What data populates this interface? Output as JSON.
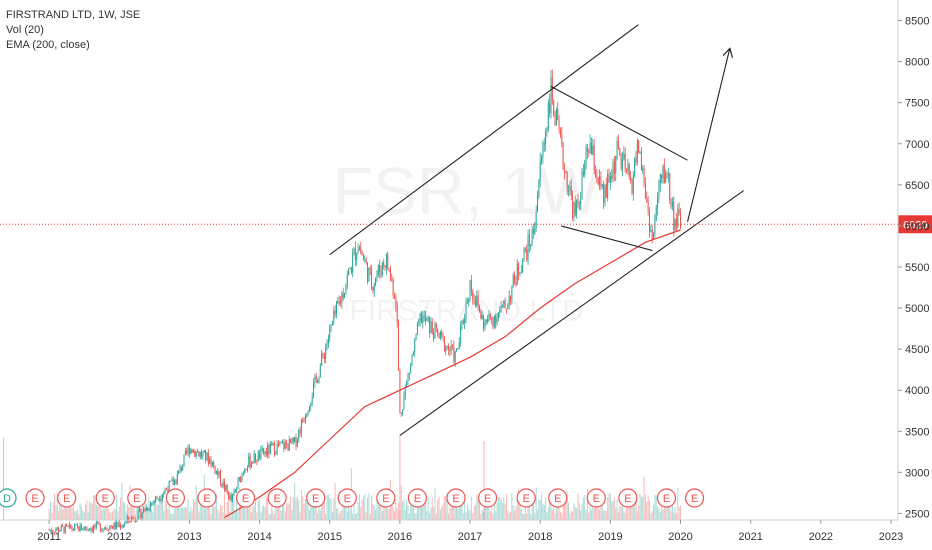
{
  "legend": {
    "symbol_line": "FIRSTRAND LTD, 1W, JSE",
    "volume_line": "Vol (20)",
    "ema_line": "EMA (200, close)"
  },
  "watermark": {
    "ticker": "FSR, 1W",
    "company": "FIRSTRAND LTD"
  },
  "colors": {
    "up": "#26a69a",
    "down": "#ef5350",
    "ema": "#e53935",
    "price_line": "#e53935",
    "trendline": "#222222",
    "axis_text": "#333333",
    "badge_fill": "#ffffff",
    "badge_stroke": "#ef5350"
  },
  "earnings_badge_label": "E",
  "dividend_badge_label": "D",
  "chart_data": {
    "type": "candlestick",
    "title": "FIRSTRAND LTD, 1W, JSE",
    "x_axis": {
      "ticks": [
        "2011",
        "2012",
        "2013",
        "2014",
        "2015",
        "2016",
        "2017",
        "2018",
        "2019",
        "2020",
        "2021",
        "2022",
        "2023"
      ],
      "range": [
        2010.3,
        2023.1
      ]
    },
    "y_axis": {
      "position": "right",
      "ticks": [
        2500,
        3000,
        3500,
        4000,
        4500,
        5000,
        5500,
        6000,
        6500,
        7000,
        7500,
        8000,
        8500
      ],
      "range": [
        2420,
        8750
      ]
    },
    "last_price": 6020,
    "price_path": [
      [
        2011.0,
        2300
      ],
      [
        2012.0,
        2350
      ],
      [
        2012.3,
        2500
      ],
      [
        2012.8,
        2900
      ],
      [
        2013.0,
        3300
      ],
      [
        2013.3,
        3150
      ],
      [
        2013.6,
        2650
      ],
      [
        2013.8,
        3100
      ],
      [
        2014.2,
        3300
      ],
      [
        2014.5,
        3350
      ],
      [
        2014.8,
        4100
      ],
      [
        2015.0,
        4700
      ],
      [
        2015.3,
        5500
      ],
      [
        2015.4,
        5800
      ],
      [
        2015.6,
        5300
      ],
      [
        2015.8,
        5600
      ],
      [
        2015.95,
        5100
      ],
      [
        2016.0,
        3700
      ],
      [
        2016.3,
        4900
      ],
      [
        2016.6,
        4600
      ],
      [
        2016.8,
        4400
      ],
      [
        2017.0,
        5300
      ],
      [
        2017.2,
        4800
      ],
      [
        2017.5,
        5000
      ],
      [
        2017.7,
        5500
      ],
      [
        2017.9,
        5900
      ],
      [
        2018.0,
        6700
      ],
      [
        2018.15,
        7650
      ],
      [
        2018.3,
        6900
      ],
      [
        2018.5,
        6100
      ],
      [
        2018.7,
        7000
      ],
      [
        2018.9,
        6300
      ],
      [
        2019.1,
        6900
      ],
      [
        2019.3,
        6500
      ],
      [
        2019.4,
        7000
      ],
      [
        2019.6,
        5800
      ],
      [
        2019.7,
        6500
      ],
      [
        2019.8,
        6700
      ],
      [
        2019.9,
        6100
      ],
      [
        2020.0,
        6020
      ]
    ],
    "ema_200": [
      [
        2013.5,
        2450
      ],
      [
        2014.0,
        2700
      ],
      [
        2014.5,
        3000
      ],
      [
        2015.0,
        3400
      ],
      [
        2015.5,
        3800
      ],
      [
        2016.0,
        4000
      ],
      [
        2016.5,
        4200
      ],
      [
        2017.0,
        4400
      ],
      [
        2017.5,
        4650
      ],
      [
        2018.0,
        5000
      ],
      [
        2018.5,
        5300
      ],
      [
        2019.0,
        5550
      ],
      [
        2019.5,
        5800
      ],
      [
        2020.0,
        5950
      ]
    ],
    "volume": {
      "indicator": "Vol (20)",
      "notable_spikes": [
        [
          2010.35,
          3420
        ],
        [
          2016.0,
          3450
        ],
        [
          2017.2,
          3380
        ]
      ]
    },
    "drawings": [
      {
        "type": "trendline",
        "from": [
          2015.0,
          5650
        ],
        "to": [
          2019.4,
          8450
        ]
      },
      {
        "type": "trendline",
        "from": [
          2016.0,
          3450
        ],
        "to": [
          2020.9,
          6430
        ]
      },
      {
        "type": "trendline",
        "from": [
          2018.15,
          7700
        ],
        "to": [
          2020.1,
          6800
        ]
      },
      {
        "type": "trendline",
        "from": [
          2018.3,
          6000
        ],
        "to": [
          2019.6,
          5700
        ]
      },
      {
        "type": "arrow",
        "from": [
          2020.1,
          6050
        ],
        "to": [
          2020.7,
          8150
        ]
      }
    ],
    "events": {
      "dividends": [
        2010.4
      ],
      "earnings": [
        2010.8,
        2011.25,
        2011.8,
        2012.25,
        2012.8,
        2013.25,
        2013.8,
        2014.25,
        2014.8,
        2015.25,
        2015.8,
        2016.25,
        2016.8,
        2017.25,
        2017.8,
        2018.25,
        2018.8,
        2019.25,
        2019.8,
        2020.2
      ]
    }
  }
}
